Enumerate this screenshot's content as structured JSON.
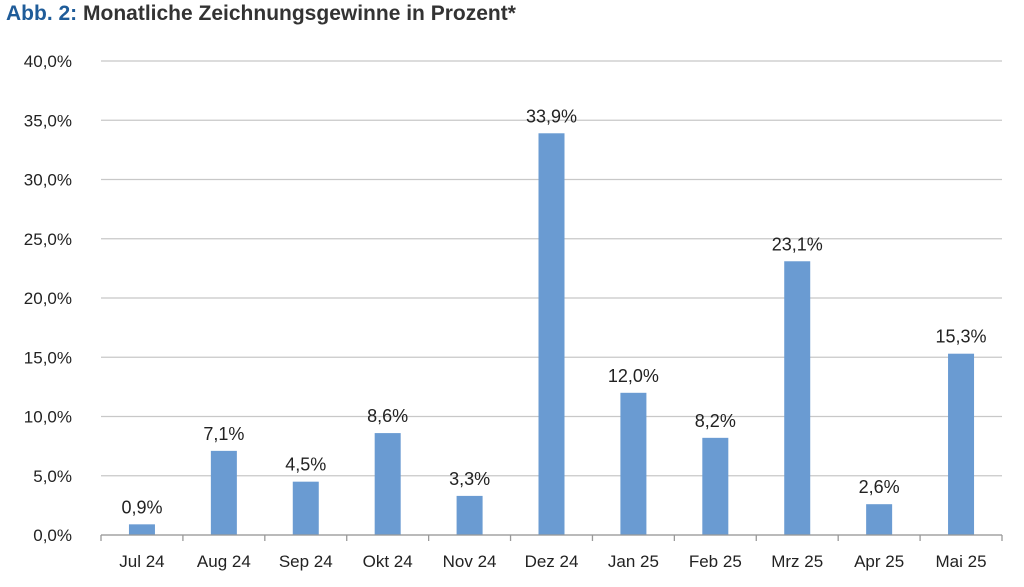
{
  "header": {
    "prefix": "Abb. 2:",
    "title": "Monatliche Zeichnungsgewinne in Prozent*"
  },
  "chart_data": {
    "type": "bar",
    "title": "Monatliche Zeichnungsgewinne in Prozent*",
    "xlabel": "",
    "ylabel": "",
    "categories": [
      "Jul 24",
      "Aug 24",
      "Sep 24",
      "Okt 24",
      "Nov 24",
      "Dez 24",
      "Jan 25",
      "Feb 25",
      "Mrz 25",
      "Apr 25",
      "Mai 25"
    ],
    "values": [
      0.9,
      7.1,
      4.5,
      8.6,
      3.3,
      33.9,
      12.0,
      8.2,
      23.1,
      2.6,
      15.3
    ],
    "value_labels": [
      "0,9%",
      "7,1%",
      "4,5%",
      "8,6%",
      "3,3%",
      "33,9%",
      "12,0%",
      "8,2%",
      "23,1%",
      "2,6%",
      "15,3%"
    ],
    "yticks": [
      0,
      5,
      10,
      15,
      20,
      25,
      30,
      35,
      40
    ],
    "ytick_labels": [
      "0,0%",
      "5,0%",
      "10,0%",
      "15,0%",
      "20,0%",
      "25,0%",
      "30,0%",
      "35,0%",
      "40,0%"
    ],
    "ylim": [
      0,
      40
    ],
    "grid": true,
    "legend": "none",
    "colors": {
      "bar": "#6a9bd2",
      "grid": "#c8c8c8",
      "title_prefix": "#1f5c99"
    }
  }
}
